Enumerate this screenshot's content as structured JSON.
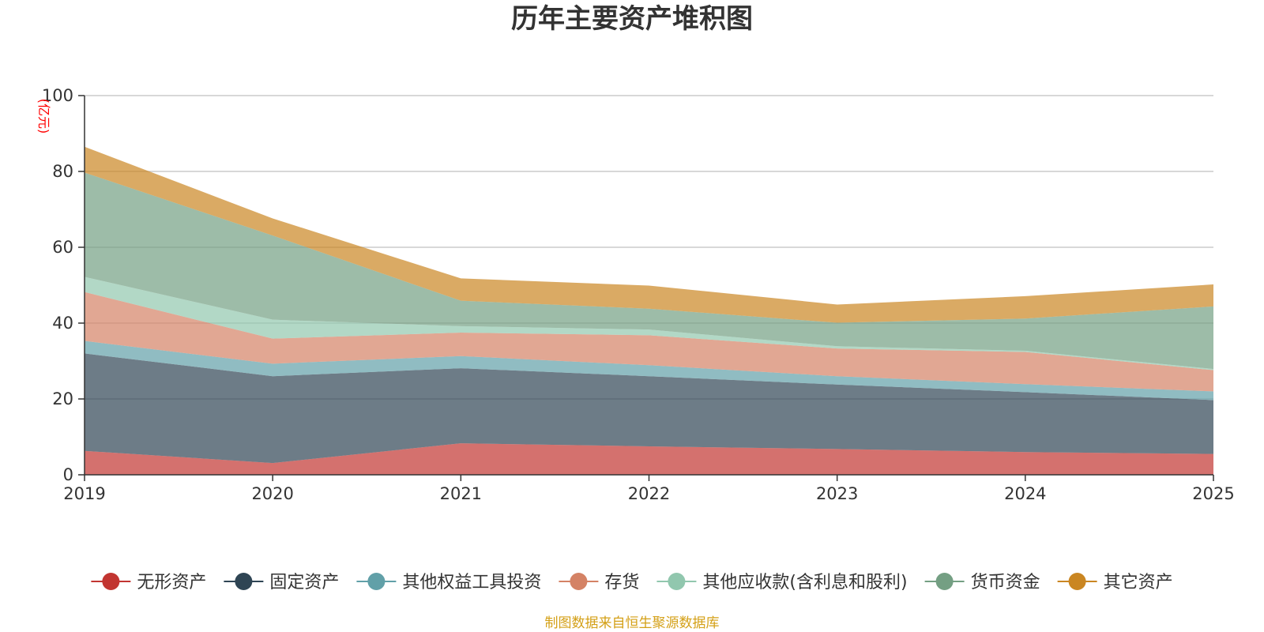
{
  "chart_data": {
    "type": "area",
    "stacked": true,
    "title": "历年主要资产堆积图",
    "ylabel": "(亿元)",
    "xlabel": "",
    "x": [
      "2019",
      "2020",
      "2021",
      "2022",
      "2023",
      "2024",
      "2025"
    ],
    "ylim": [
      0,
      100
    ],
    "yticks": [
      0,
      20,
      40,
      60,
      80,
      100
    ],
    "grid": true,
    "legend": "bottom",
    "series": [
      {
        "name": "无形资产",
        "color": "#c23531",
        "values": [
          6.3,
          3.1,
          8.3,
          7.5,
          6.8,
          6.0,
          5.5
        ]
      },
      {
        "name": "固定资产",
        "color": "#2f4554",
        "values": [
          25.7,
          22.9,
          19.8,
          18.5,
          17.0,
          15.8,
          14.2
        ]
      },
      {
        "name": "其他权益工具投资",
        "color": "#61a0a8",
        "values": [
          3.3,
          3.3,
          3.2,
          2.9,
          2.2,
          2.1,
          2.3
        ]
      },
      {
        "name": "存货",
        "color": "#d48265",
        "values": [
          12.9,
          6.6,
          6.2,
          7.9,
          7.3,
          8.5,
          5.6
        ]
      },
      {
        "name": "其他应收款(含利息和股利)",
        "color": "#91c7ae",
        "values": [
          4.0,
          5.0,
          1.7,
          1.5,
          0.6,
          0.3,
          0.3
        ]
      },
      {
        "name": "货币资金",
        "color": "#749f83",
        "values": [
          27.5,
          22.2,
          6.7,
          5.5,
          6.2,
          8.5,
          16.5
        ]
      },
      {
        "name": "其它资产",
        "color": "#ca8622",
        "values": [
          6.8,
          4.5,
          5.9,
          6.1,
          4.8,
          5.9,
          5.8
        ]
      }
    ],
    "source": "制图数据来自恒生聚源数据库"
  }
}
